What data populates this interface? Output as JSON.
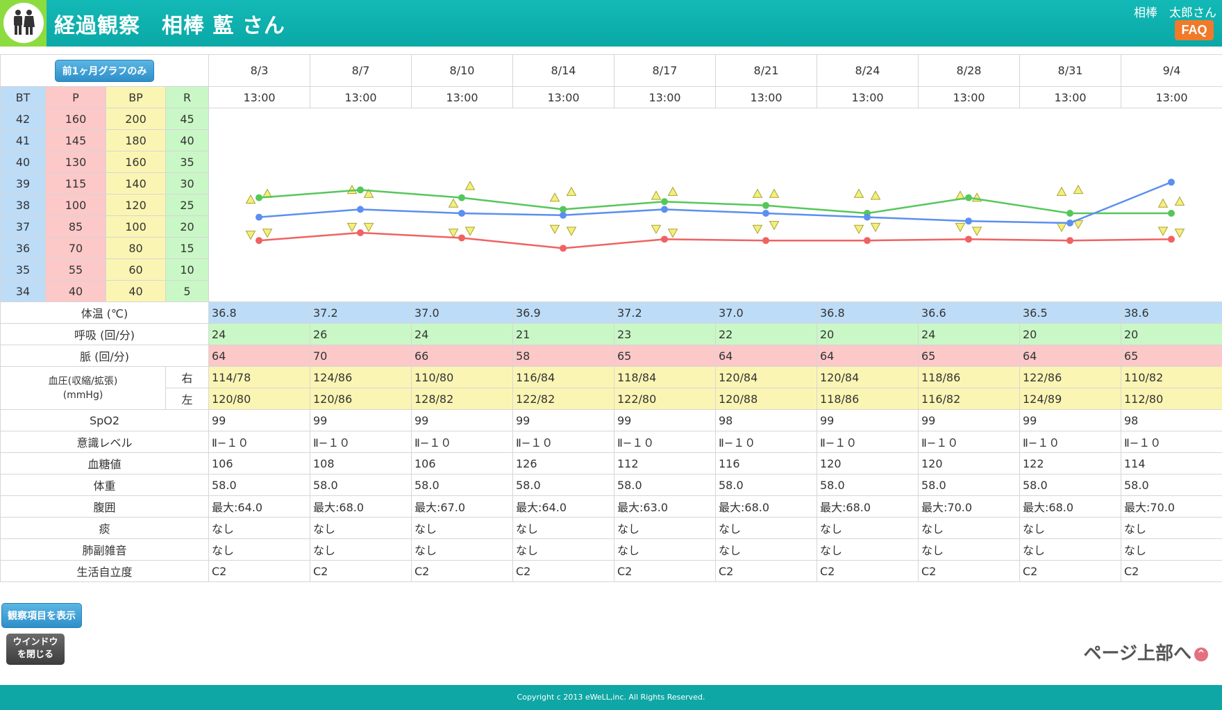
{
  "header": {
    "title": "経過観察　相棒 藍 さん",
    "user": "相棒　太郎さん",
    "faq": "FAQ"
  },
  "graph_button": "前1ヶ月グラフのみ",
  "dates": [
    "8/3",
    "8/7",
    "8/10",
    "8/14",
    "8/17",
    "8/21",
    "8/24",
    "8/28",
    "8/31",
    "9/4"
  ],
  "times": [
    "13:00",
    "13:00",
    "13:00",
    "13:00",
    "13:00",
    "13:00",
    "13:00",
    "13:00",
    "13:00",
    "13:00"
  ],
  "scale": {
    "headers": [
      "BT",
      "P",
      "BP",
      "R"
    ],
    "bt": [
      "42",
      "41",
      "40",
      "39",
      "38",
      "37",
      "36",
      "35",
      "34"
    ],
    "p": [
      "160",
      "145",
      "130",
      "115",
      "100",
      "85",
      "70",
      "55",
      "40"
    ],
    "bp": [
      "200",
      "180",
      "160",
      "140",
      "120",
      "100",
      "80",
      "60",
      "40"
    ],
    "r": [
      "45",
      "40",
      "35",
      "30",
      "25",
      "20",
      "15",
      "10",
      "5"
    ]
  },
  "rows": [
    {
      "label": "体温 (℃)",
      "values": [
        "36.8",
        "37.2",
        "37.0",
        "36.9",
        "37.2",
        "37.0",
        "36.8",
        "36.6",
        "36.5",
        "38.6"
      ]
    },
    {
      "label": "呼吸 (回/分)",
      "values": [
        "24",
        "26",
        "24",
        "21",
        "23",
        "22",
        "20",
        "24",
        "20",
        "20"
      ]
    },
    {
      "label": "脈 (回/分)",
      "values": [
        "64",
        "70",
        "66",
        "58",
        "65",
        "64",
        "64",
        "65",
        "64",
        "65"
      ]
    }
  ],
  "bp": {
    "label1": "血圧(収縮/拡張)",
    "label2": "(mmHg)",
    "right_label": "右",
    "left_label": "左",
    "right": [
      "114/78",
      "124/86",
      "110/80",
      "116/84",
      "118/84",
      "120/84",
      "120/84",
      "118/86",
      "122/86",
      "110/82"
    ],
    "left": [
      "120/80",
      "120/86",
      "128/82",
      "122/82",
      "122/80",
      "120/88",
      "118/86",
      "116/82",
      "124/89",
      "112/80"
    ]
  },
  "rows2": [
    {
      "label": "SpO2",
      "values": [
        "99",
        "99",
        "99",
        "99",
        "99",
        "98",
        "99",
        "99",
        "99",
        "98"
      ]
    },
    {
      "label": "意識レベル",
      "values": [
        "Ⅱ−１０",
        "Ⅱ−１０",
        "Ⅱ−１０",
        "Ⅱ−１０",
        "Ⅱ−１０",
        "Ⅱ−１０",
        "Ⅱ−１０",
        "Ⅱ−１０",
        "Ⅱ−１０",
        "Ⅱ−１０"
      ]
    },
    {
      "label": "血糖値",
      "values": [
        "106",
        "108",
        "106",
        "126",
        "112",
        "116",
        "120",
        "120",
        "122",
        "114"
      ]
    },
    {
      "label": "体重",
      "values": [
        "58.0",
        "58.0",
        "58.0",
        "58.0",
        "58.0",
        "58.0",
        "58.0",
        "58.0",
        "58.0",
        "58.0"
      ]
    },
    {
      "label": "腹囲",
      "values": [
        "最大:64.0",
        "最大:68.0",
        "最大:67.0",
        "最大:64.0",
        "最大:63.0",
        "最大:68.0",
        "最大:68.0",
        "最大:70.0",
        "最大:68.0",
        "最大:70.0"
      ]
    },
    {
      "label": "痰",
      "values": [
        "なし",
        "なし",
        "なし",
        "なし",
        "なし",
        "なし",
        "なし",
        "なし",
        "なし",
        "なし"
      ]
    },
    {
      "label": "肺副雑音",
      "values": [
        "なし",
        "なし",
        "なし",
        "なし",
        "なし",
        "なし",
        "なし",
        "なし",
        "なし",
        "なし"
      ]
    },
    {
      "label": "生活自立度",
      "values": [
        "C2",
        "C2",
        "C2",
        "C2",
        "C2",
        "C2",
        "C2",
        "C2",
        "C2",
        "C2"
      ]
    }
  ],
  "buttons": {
    "show_items": "観察項目を表示",
    "close_line1": "ウインドウ",
    "close_line2": "を閉じる",
    "page_top": "ページ上部へ",
    "page_top_icon": "^"
  },
  "footer": "Copyright c 2013 eWeLL,inc. All Rights Reserved.",
  "colors": {
    "bt": "#5b8ff0",
    "r": "#55c75a",
    "p": "#f06262",
    "bp_marker": "#f3ef7a"
  },
  "chart_data": {
    "type": "line",
    "categories": [
      "8/3",
      "8/7",
      "8/10",
      "8/14",
      "8/17",
      "8/21",
      "8/24",
      "8/28",
      "8/31",
      "9/4"
    ],
    "series": [
      {
        "name": "BT",
        "values": [
          36.8,
          37.2,
          37.0,
          36.9,
          37.2,
          37.0,
          36.8,
          36.6,
          36.5,
          38.6
        ]
      },
      {
        "name": "R",
        "values": [
          24,
          26,
          24,
          21,
          23,
          22,
          20,
          24,
          20,
          20
        ]
      },
      {
        "name": "P",
        "values": [
          64,
          70,
          66,
          58,
          65,
          64,
          64,
          65,
          64,
          65
        ]
      },
      {
        "name": "BP右",
        "values": [
          [
            114,
            78
          ],
          [
            124,
            86
          ],
          [
            110,
            80
          ],
          [
            116,
            84
          ],
          [
            118,
            84
          ],
          [
            120,
            84
          ],
          [
            120,
            84
          ],
          [
            118,
            86
          ],
          [
            122,
            86
          ],
          [
            110,
            82
          ]
        ]
      },
      {
        "name": "BP左",
        "values": [
          [
            120,
            80
          ],
          [
            120,
            86
          ],
          [
            128,
            82
          ],
          [
            122,
            82
          ],
          [
            122,
            80
          ],
          [
            120,
            88
          ],
          [
            118,
            86
          ],
          [
            116,
            82
          ],
          [
            124,
            89
          ],
          [
            112,
            80
          ]
        ]
      }
    ],
    "scales": {
      "BT": [
        34,
        42
      ],
      "P": [
        40,
        160
      ],
      "BP": [
        40,
        200
      ],
      "R": [
        5,
        45
      ]
    }
  }
}
